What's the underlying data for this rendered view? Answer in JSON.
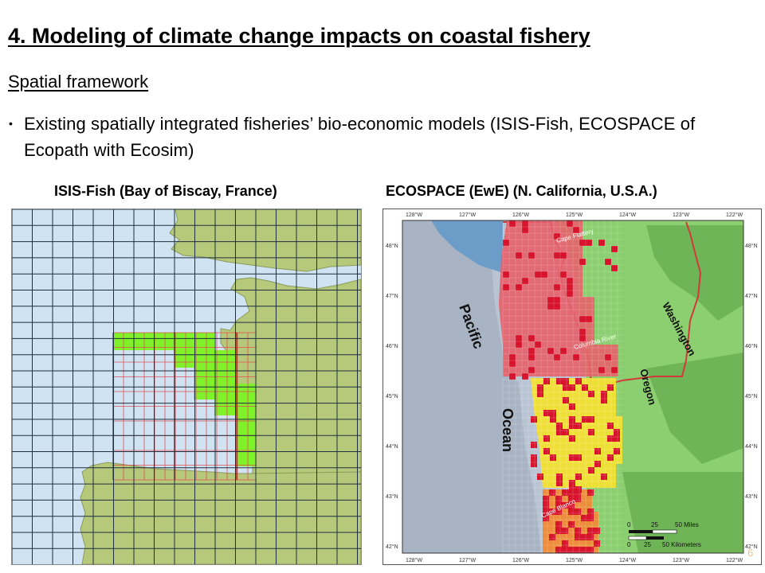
{
  "slide": {
    "title": "4. Modeling of climate change impacts on coastal fishery",
    "subtitle": "Spatial framework",
    "bullet": "Existing spatially integrated fisheries’ bio-economic models (ISIS-Fish, ECOSPACE of Ecopath with Ecosim)",
    "page_number": "6"
  },
  "left_figure": {
    "caption": "ISIS-Fish (Bay of Biscay, France)",
    "colors": {
      "sea": "#cfe3f3",
      "land": "#b6c97a",
      "green_cell": "#7ff22a",
      "red_grid": "#e05050",
      "grid": "#1f2f3f"
    }
  },
  "right_figure": {
    "caption": "ECOSPACE (EwE) (N. California, U.S.A.)",
    "lon_labels": [
      "128°W",
      "127°W",
      "126°W",
      "125°W",
      "124°W",
      "123°W",
      "122°W"
    ],
    "lat_labels": [
      "48°N",
      "47°N",
      "46°N",
      "45°N",
      "44°N",
      "43°N",
      "42°N"
    ],
    "place_labels": {
      "pacific": "Pacific",
      "ocean": "Ocean",
      "washington": "Washington",
      "oregon": "Oregon",
      "cape_flattery": "Cape Flattery",
      "columbia_river": "Columbia River",
      "cape_blanco": "Cape Blanco"
    },
    "scale": {
      "ticks": [
        "0",
        "25",
        "50 Miles"
      ],
      "km_ticks": [
        "0",
        "25",
        "50 Kilometers"
      ]
    },
    "colors": {
      "ocean": "#b9c4d2",
      "land": "#8ccf70",
      "north_zone": "#e6606a",
      "central_zone": "#f2e030",
      "south_zone": "#f08a35",
      "cell": "#d8142c"
    }
  }
}
